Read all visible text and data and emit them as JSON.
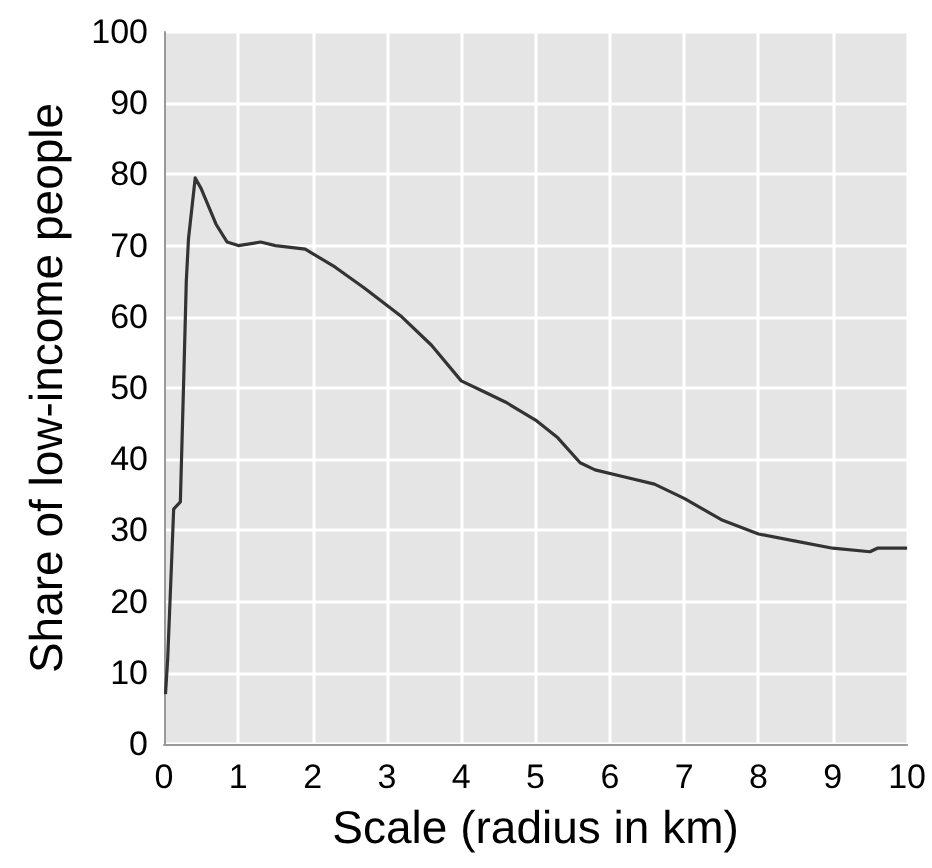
{
  "chart_data": {
    "type": "line",
    "xlabel": "Scale (radius in km)",
    "ylabel": "Share of low-income people",
    "xlim": [
      0,
      10
    ],
    "xticks": [
      0,
      1,
      2,
      3,
      4,
      5,
      6,
      7,
      8,
      9,
      10
    ],
    "ylim": [
      0,
      100
    ],
    "yticks": [
      0,
      10,
      20,
      30,
      40,
      50,
      60,
      70,
      80,
      90,
      100
    ],
    "grid": true,
    "marker": "none",
    "line_style": "solid",
    "series": [
      {
        "color": "#333333",
        "x": [
          0.02,
          0.05,
          0.1,
          0.13,
          0.22,
          0.27,
          0.3,
          0.33,
          0.42,
          0.5,
          0.7,
          0.85,
          1.0,
          1.3,
          1.5,
          1.9,
          2.3,
          2.7,
          3.2,
          3.6,
          4.0,
          4.3,
          4.6,
          5.0,
          5.3,
          5.6,
          5.8,
          6.2,
          6.6,
          7.0,
          7.5,
          8.0,
          8.5,
          9.0,
          9.5,
          9.6,
          10.0
        ],
        "values": [
          7,
          12,
          25,
          33,
          34,
          53,
          65,
          71,
          79.5,
          78,
          73,
          70.5,
          70,
          70.5,
          70,
          69.5,
          67,
          64,
          60,
          56,
          51,
          49.5,
          48,
          45.5,
          43,
          39.5,
          38.5,
          37.5,
          36.5,
          34.5,
          31.5,
          29.5,
          28.5,
          27.5,
          27,
          27.5,
          27.5
        ]
      }
    ]
  }
}
